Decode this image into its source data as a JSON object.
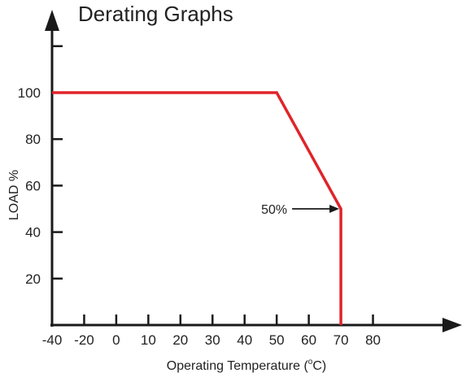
{
  "chart_data": {
    "type": "line",
    "title": "Derating Graphs",
    "xlabel_main": "Operating Temperature (",
    "xlabel_sup": "o",
    "xlabel_unit": "C)",
    "ylabel": "LOAD %",
    "x_ticks": [
      {
        "value": -40,
        "label": "-40"
      },
      {
        "value": -30,
        "label": "-20"
      },
      {
        "value": -20,
        "label": "0"
      },
      {
        "value": -10,
        "label": "10"
      },
      {
        "value": 0,
        "label": "20"
      },
      {
        "value": 10,
        "label": "30"
      },
      {
        "value": 20,
        "label": "40"
      },
      {
        "value": 30,
        "label": "50"
      },
      {
        "value": 40,
        "label": "60"
      },
      {
        "value": 50,
        "label": "70"
      },
      {
        "value": 60,
        "label": "80"
      }
    ],
    "y_ticks": [
      20,
      40,
      60,
      80,
      100
    ],
    "xlim": [
      -40,
      70
    ],
    "ylim": [
      0,
      120
    ],
    "series": [
      {
        "color": "#e0242a",
        "points": [
          [
            -40,
            100
          ],
          [
            30,
            100
          ],
          [
            50,
            50
          ],
          [
            50,
            0
          ]
        ]
      }
    ],
    "annotation": {
      "text": "50%",
      "x": 50,
      "y": 50
    },
    "colors": {
      "axis": "#1a1a1a",
      "line": "#e0242a"
    }
  }
}
